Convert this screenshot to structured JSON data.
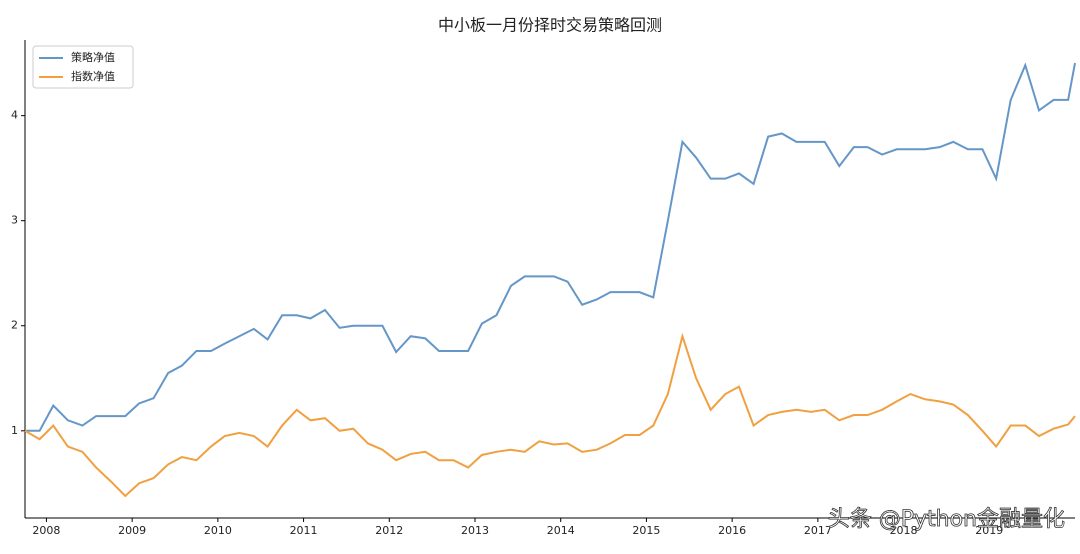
{
  "chart_data": {
    "type": "line",
    "title": "中小板一月份择时交易策略回测",
    "x": [
      2007.75,
      2007.92,
      2008.08,
      2008.25,
      2008.42,
      2008.58,
      2008.75,
      2008.92,
      2009.08,
      2009.25,
      2009.42,
      2009.58,
      2009.75,
      2009.92,
      2010.08,
      2010.25,
      2010.42,
      2010.58,
      2010.75,
      2010.92,
      2011.08,
      2011.25,
      2011.42,
      2011.58,
      2011.75,
      2011.92,
      2012.08,
      2012.25,
      2012.42,
      2012.58,
      2012.75,
      2012.92,
      2013.08,
      2013.25,
      2013.42,
      2013.58,
      2013.75,
      2013.92,
      2014.08,
      2014.25,
      2014.42,
      2014.58,
      2014.75,
      2014.92,
      2015.08,
      2015.25,
      2015.42,
      2015.58,
      2015.75,
      2015.92,
      2016.08,
      2016.25,
      2016.42,
      2016.58,
      2016.75,
      2016.92,
      2017.08,
      2017.25,
      2017.42,
      2017.58,
      2017.75,
      2017.92,
      2018.08,
      2018.25,
      2018.42,
      2018.58,
      2018.75,
      2018.92,
      2019.08,
      2019.25,
      2019.42,
      2019.58,
      2019.75,
      2019.92,
      2020.0
    ],
    "series": [
      {
        "name": "策略净值",
        "color": "#6497c8",
        "values": [
          1.0,
          1.0,
          1.24,
          1.1,
          1.05,
          1.14,
          1.14,
          1.14,
          1.26,
          1.31,
          1.55,
          1.62,
          1.76,
          1.76,
          1.83,
          1.9,
          1.97,
          1.87,
          2.1,
          2.1,
          2.07,
          2.15,
          1.98,
          2.0,
          2.0,
          2.0,
          1.75,
          1.9,
          1.88,
          1.76,
          1.76,
          1.76,
          2.02,
          2.1,
          2.38,
          2.47,
          2.47,
          2.47,
          2.42,
          2.2,
          2.25,
          2.32,
          2.32,
          2.32,
          2.27,
          3.0,
          3.75,
          3.6,
          3.4,
          3.4,
          3.45,
          3.35,
          3.8,
          3.83,
          3.75,
          3.75,
          3.75,
          3.52,
          3.7,
          3.7,
          3.63,
          3.68,
          3.68,
          3.68,
          3.7,
          3.75,
          3.68,
          3.68,
          3.4,
          4.15,
          4.48,
          4.05,
          4.15,
          4.15,
          4.5
        ]
      },
      {
        "name": "指数净值",
        "color": "#f0a040",
        "values": [
          1.0,
          0.92,
          1.05,
          0.85,
          0.8,
          0.65,
          0.52,
          0.38,
          0.5,
          0.55,
          0.68,
          0.75,
          0.72,
          0.85,
          0.95,
          0.98,
          0.95,
          0.85,
          1.05,
          1.2,
          1.1,
          1.12,
          1.0,
          1.02,
          0.88,
          0.82,
          0.72,
          0.78,
          0.8,
          0.72,
          0.72,
          0.65,
          0.77,
          0.8,
          0.82,
          0.8,
          0.9,
          0.87,
          0.88,
          0.8,
          0.82,
          0.88,
          0.96,
          0.96,
          1.05,
          1.35,
          1.9,
          1.5,
          1.2,
          1.35,
          1.42,
          1.05,
          1.15,
          1.18,
          1.2,
          1.18,
          1.2,
          1.1,
          1.15,
          1.15,
          1.2,
          1.28,
          1.35,
          1.3,
          1.28,
          1.25,
          1.15,
          1.0,
          0.85,
          1.05,
          1.05,
          0.95,
          1.02,
          1.06,
          1.14
        ]
      }
    ],
    "xlim": [
      2007.75,
      2020.0
    ],
    "xticks": [
      2008,
      2009,
      2010,
      2011,
      2012,
      2013,
      2014,
      2015,
      2016,
      2017,
      2018,
      2019
    ],
    "ylim": [
      0.17,
      4.72
    ],
    "yticks": [
      1,
      2,
      3,
      4
    ],
    "legend": "upper left",
    "grid": false,
    "watermark": "头条 @Python金融量化"
  }
}
